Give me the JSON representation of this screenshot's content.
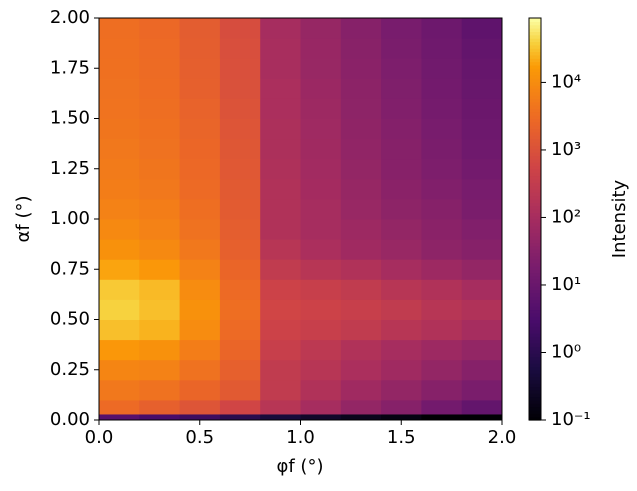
{
  "chart_data": {
    "type": "heatmap",
    "x_label": "φf (°)",
    "y_label": "αf (°)",
    "colorbar_label": "Intensity",
    "colormap": "inferno",
    "color_scale": "log",
    "clim": [
      0.1,
      90000
    ],
    "xbins": [
      0,
      0.2,
      0.4,
      0.6,
      0.8,
      1.0,
      1.2,
      1.4,
      1.6,
      1.8,
      2.0
    ],
    "ybins": [
      0,
      0.03,
      0.1,
      0.2,
      0.3,
      0.4,
      0.5,
      0.6,
      0.7,
      0.8,
      0.9,
      1.0,
      1.1,
      1.2,
      1.3,
      1.4,
      1.5,
      1.6,
      1.7,
      1.8,
      1.9,
      2.0
    ],
    "z": [
      [
        5,
        3,
        2,
        1,
        0.5,
        0.3,
        0.2,
        0.15,
        0.1,
        0.1
      ],
      [
        3000,
        2000,
        1200,
        600,
        200,
        100,
        50,
        30,
        15,
        8
      ],
      [
        5000,
        4000,
        2500,
        1500,
        300,
        150,
        80,
        50,
        30,
        20
      ],
      [
        8000,
        7000,
        4000,
        2000,
        300,
        200,
        120,
        80,
        50,
        30
      ],
      [
        15000,
        12000,
        6000,
        2500,
        400,
        250,
        150,
        100,
        70,
        50
      ],
      [
        30000,
        25000,
        10000,
        3000,
        500,
        400,
        300,
        200,
        150,
        100
      ],
      [
        40000,
        30000,
        12000,
        3500,
        600,
        500,
        400,
        300,
        200,
        150
      ],
      [
        35000,
        28000,
        10000,
        3000,
        500,
        400,
        300,
        200,
        150,
        100
      ],
      [
        20000,
        15000,
        7000,
        2500,
        300,
        200,
        150,
        100,
        70,
        50
      ],
      [
        12000,
        9000,
        5000,
        2000,
        200,
        120,
        80,
        60,
        40,
        30
      ],
      [
        9000,
        7000,
        4000,
        1800,
        150,
        100,
        70,
        50,
        35,
        25
      ],
      [
        7000,
        6000,
        3500,
        1600,
        150,
        100,
        60,
        40,
        30,
        20
      ],
      [
        6000,
        5000,
        3000,
        1500,
        150,
        90,
        55,
        35,
        25,
        18
      ],
      [
        5500,
        4500,
        2800,
        1400,
        140,
        85,
        50,
        32,
        22,
        15
      ],
      [
        5000,
        4000,
        2600,
        1300,
        130,
        80,
        45,
        30,
        20,
        13
      ],
      [
        4500,
        3800,
        2400,
        1200,
        130,
        75,
        42,
        28,
        18,
        12
      ],
      [
        4200,
        3500,
        2200,
        1100,
        120,
        70,
        40,
        25,
        16,
        11
      ],
      [
        4000,
        3300,
        2000,
        1000,
        120,
        65,
        38,
        24,
        15,
        10
      ],
      [
        3800,
        3100,
        1900,
        950,
        110,
        60,
        35,
        22,
        14,
        9
      ],
      [
        3600,
        3000,
        1800,
        900,
        110,
        58,
        33,
        20,
        13,
        8
      ],
      [
        3500,
        2800,
        1700,
        850,
        100,
        55,
        30,
        18,
        12,
        7
      ]
    ],
    "xlim": [
      0,
      2
    ],
    "ylim": [
      0,
      2
    ],
    "xticks": [
      {
        "value": 0,
        "label": "0.0"
      },
      {
        "value": 0.5,
        "label": "0.5"
      },
      {
        "value": 1,
        "label": "1.0"
      },
      {
        "value": 1.5,
        "label": "1.5"
      },
      {
        "value": 2,
        "label": "2.0"
      }
    ],
    "yticks": [
      {
        "value": 0,
        "label": "0.00"
      },
      {
        "value": 0.25,
        "label": "0.25"
      },
      {
        "value": 0.5,
        "label": "0.50"
      },
      {
        "value": 0.75,
        "label": "0.75"
      },
      {
        "value": 1,
        "label": "1.00"
      },
      {
        "value": 1.25,
        "label": "1.25"
      },
      {
        "value": 1.5,
        "label": "1.50"
      },
      {
        "value": 1.75,
        "label": "1.75"
      },
      {
        "value": 2,
        "label": "2.00"
      }
    ],
    "colorbar_ticks": [
      {
        "value": 0.1,
        "label": "10⁻¹"
      },
      {
        "value": 1,
        "label": "10⁰"
      },
      {
        "value": 10,
        "label": "10¹"
      },
      {
        "value": 100,
        "label": "10²"
      },
      {
        "value": 1000,
        "label": "10³"
      },
      {
        "value": 10000,
        "label": "10⁴"
      }
    ]
  }
}
